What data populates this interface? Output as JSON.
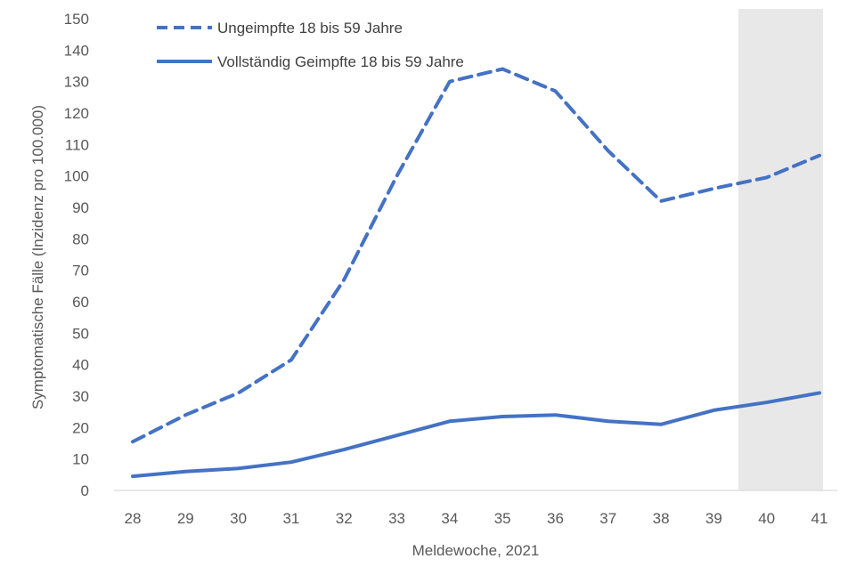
{
  "chart_data": {
    "type": "line",
    "title": "",
    "xlabel": "Meldewoche, 2021",
    "ylabel": "Symptomatische Fälle (Inzidenz pro 100.000)",
    "categories": [
      "28",
      "29",
      "30",
      "31",
      "32",
      "33",
      "34",
      "35",
      "36",
      "37",
      "38",
      "39",
      "40",
      "41"
    ],
    "ylim": [
      0,
      150
    ],
    "yticks": [
      "0",
      "10",
      "20",
      "30",
      "40",
      "50",
      "60",
      "70",
      "80",
      "90",
      "100",
      "110",
      "120",
      "130",
      "140",
      "150"
    ],
    "grid": false,
    "legend_position": "top-left",
    "shaded_region": {
      "from_category": "39.5",
      "to_category": "41",
      "color": "#e8e8e8"
    },
    "series": [
      {
        "name": "Ungeimpfte 18 bis 59 Jahre",
        "style": "dashed",
        "color": "#4472c4",
        "values": [
          15.5,
          24,
          31,
          41.5,
          67,
          100,
          130,
          134,
          127,
          108,
          92,
          96,
          99.5,
          106.5
        ]
      },
      {
        "name": "Vollständig Geimpfte 18 bis 59 Jahre",
        "style": "solid",
        "color": "#4472c4",
        "values": [
          4.5,
          6,
          7,
          9,
          13,
          17.5,
          22,
          23.5,
          24,
          22,
          21,
          25.5,
          28,
          31
        ]
      }
    ]
  }
}
